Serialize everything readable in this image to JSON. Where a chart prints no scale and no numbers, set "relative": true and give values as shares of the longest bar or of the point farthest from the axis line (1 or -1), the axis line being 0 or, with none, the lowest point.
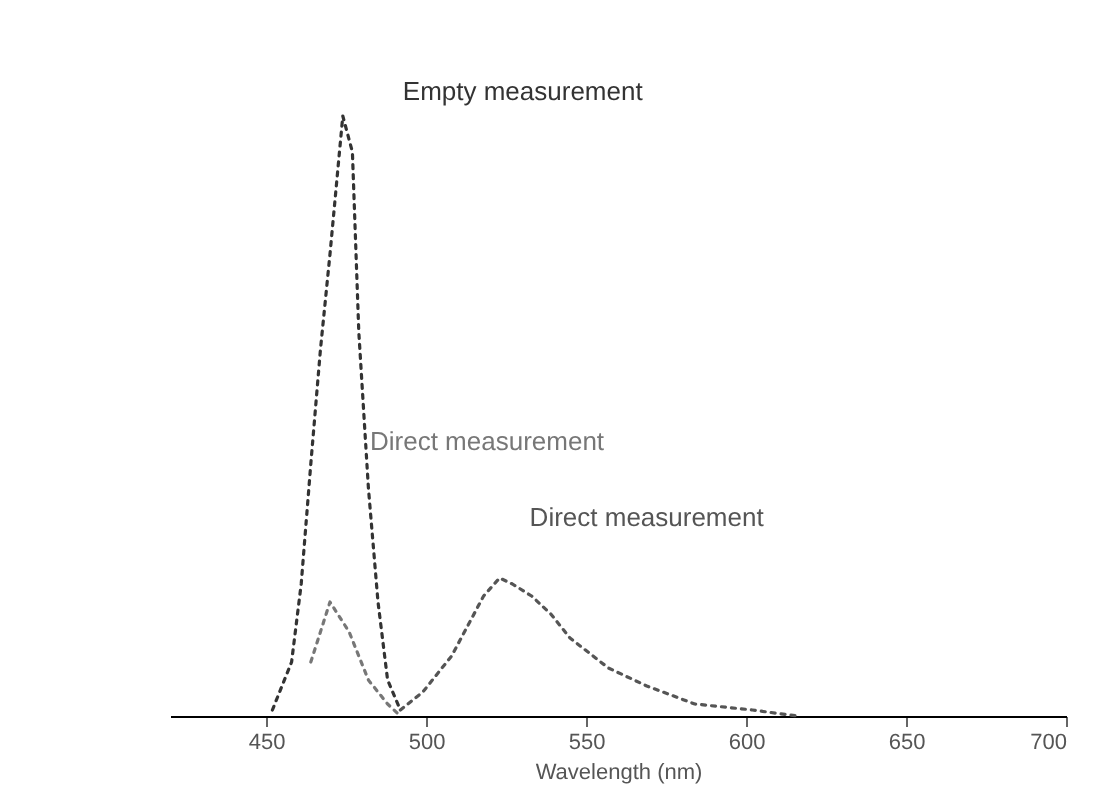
{
  "chart_data": {
    "type": "line",
    "relative": true,
    "xlabel": "Wavelength (nm)",
    "xlim": [
      420,
      700
    ],
    "xticks": [
      450,
      500,
      550,
      600,
      650,
      700
    ],
    "series": [
      {
        "name": "Empty measurement",
        "color": "#333333",
        "x": [
          452,
          458,
          461,
          464,
          467,
          470,
          474,
          477,
          479,
          482,
          485,
          488,
          492
        ],
        "values": [
          0.01,
          0.09,
          0.22,
          0.42,
          0.61,
          0.77,
          1,
          0.94,
          0.64,
          0.38,
          0.19,
          0.06,
          0.01
        ]
      },
      {
        "name": "Direct measurement",
        "color": "#777777",
        "x": [
          464,
          470,
          476,
          482,
          488,
          492
        ],
        "values": [
          0.09,
          0.19,
          0.14,
          0.06,
          0.02,
          0
        ]
      },
      {
        "name": "Direct measurement",
        "color": "#555555",
        "x": [
          492,
          499,
          508,
          513,
          518,
          523,
          527,
          533,
          539,
          545,
          557,
          569,
          584,
          602,
          616
        ],
        "values": [
          0.01,
          0.04,
          0.1,
          0.15,
          0.2,
          0.23,
          0.22,
          0.2,
          0.17,
          0.13,
          0.08,
          0.05,
          0.02,
          0.01,
          0
        ]
      }
    ],
    "legend": false,
    "grid": false,
    "line_style": "dotted"
  }
}
